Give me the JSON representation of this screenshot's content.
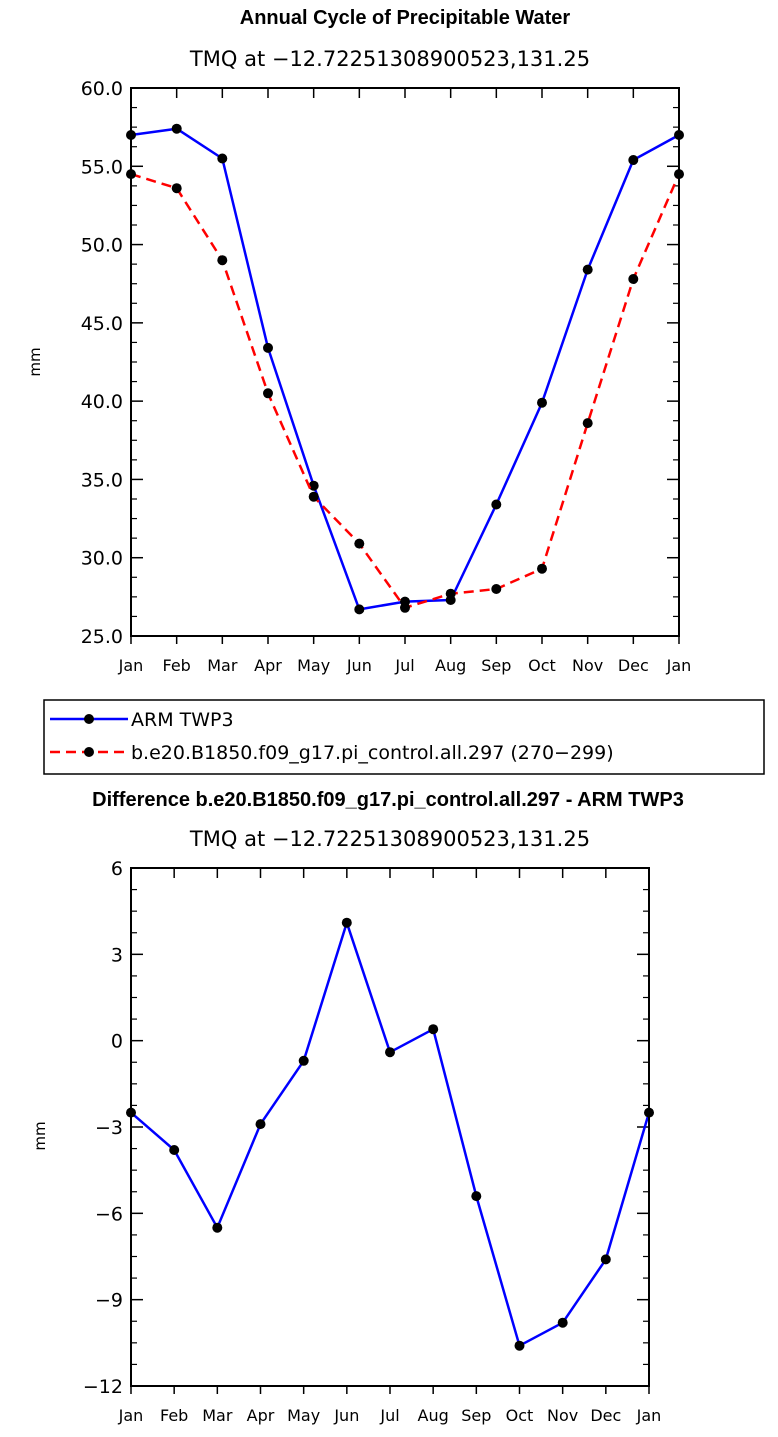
{
  "chart_data": [
    {
      "type": "line",
      "title": "Annual Cycle of Precipitable Water",
      "subtitle": "TMQ at −12.72251308900523,131.25",
      "ylabel": "mm",
      "ylim": [
        25.0,
        60.0
      ],
      "yticks": [
        "25.0",
        "30.0",
        "35.0",
        "40.0",
        "45.0",
        "50.0",
        "55.0",
        "60.0"
      ],
      "categories": [
        "Jan",
        "Feb",
        "Mar",
        "Apr",
        "May",
        "Jun",
        "Jul",
        "Aug",
        "Sep",
        "Oct",
        "Nov",
        "Dec",
        "Jan"
      ],
      "series": [
        {
          "name": "ARM TWP3",
          "color": "#0000ff",
          "dash": "solid",
          "values": [
            57.0,
            57.4,
            55.5,
            43.4,
            34.6,
            26.7,
            27.2,
            27.3,
            33.4,
            39.9,
            48.4,
            55.4,
            57.0
          ]
        },
        {
          "name": "b.e20.B1850.f09_g17.pi_control.all.297 (270−299)",
          "color": "#ff0000",
          "dash": "dashed",
          "values": [
            54.5,
            53.6,
            49.0,
            40.5,
            33.9,
            30.9,
            26.8,
            27.7,
            28.0,
            29.3,
            38.6,
            47.8,
            54.5
          ]
        }
      ],
      "legend": "below"
    },
    {
      "type": "line",
      "title": "Difference b.e20.B1850.f09_g17.pi_control.all.297 - ARM TWP3",
      "subtitle": "TMQ at −12.72251308900523,131.25",
      "ylabel": "mm",
      "ylim": [
        -12,
        6
      ],
      "yticks": [
        "−12",
        "−9",
        "−6",
        "−3",
        "0",
        "3",
        "6"
      ],
      "categories": [
        "Jan",
        "Feb",
        "Mar",
        "Apr",
        "May",
        "Jun",
        "Jul",
        "Aug",
        "Sep",
        "Oct",
        "Nov",
        "Dec",
        "Jan"
      ],
      "series": [
        {
          "color": "#0000ff",
          "dash": "solid",
          "values": [
            -2.5,
            -3.8,
            -6.5,
            -2.9,
            -0.7,
            4.1,
            -0.4,
            0.4,
            -5.4,
            -10.6,
            -9.8,
            -7.6,
            -2.5
          ]
        }
      ]
    }
  ]
}
